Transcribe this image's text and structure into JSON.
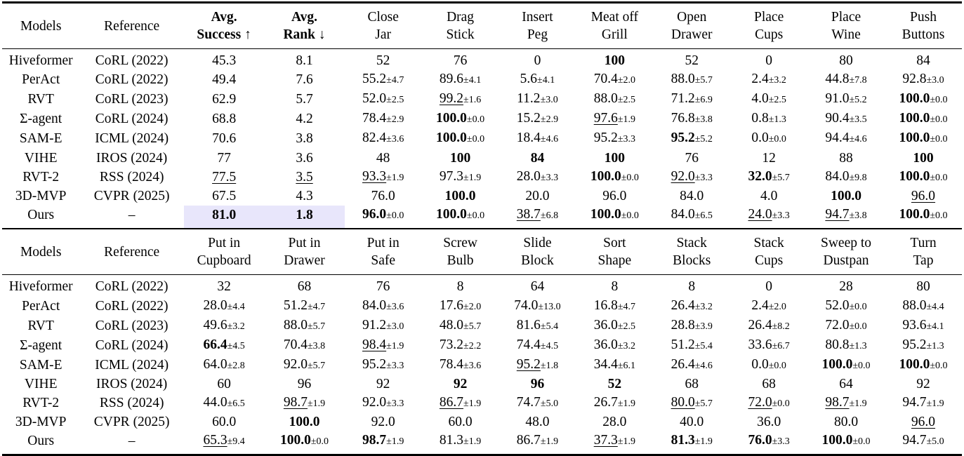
{
  "header_top": {
    "models": "Models",
    "reference": "Reference",
    "avg_success": [
      "Avg.",
      "Success ↑"
    ],
    "avg_rank": [
      "Avg.",
      "Rank ↓"
    ],
    "tasks": [
      [
        "Close",
        "Jar"
      ],
      [
        "Drag",
        "Stick"
      ],
      [
        "Insert",
        "Peg"
      ],
      [
        "Meat off",
        "Grill"
      ],
      [
        "Open",
        "Drawer"
      ],
      [
        "Place",
        "Cups"
      ],
      [
        "Place",
        "Wine"
      ],
      [
        "Push",
        "Buttons"
      ]
    ]
  },
  "rows_top": [
    {
      "model": "Hiveformer",
      "ref": "CoRL (2022)",
      "cells": [
        {
          "v": "45.3"
        },
        {
          "v": "8.1"
        },
        {
          "v": "52"
        },
        {
          "v": "76"
        },
        {
          "v": "0"
        },
        {
          "v": "100",
          "b": true
        },
        {
          "v": "52"
        },
        {
          "v": "0"
        },
        {
          "v": "80"
        },
        {
          "v": "84"
        }
      ]
    },
    {
      "model": "PerAct",
      "ref": "CoRL (2022)",
      "cells": [
        {
          "v": "49.4"
        },
        {
          "v": "7.6"
        },
        {
          "v": "55.2",
          "s": "±4.7"
        },
        {
          "v": "89.6",
          "s": "±4.1"
        },
        {
          "v": "5.6",
          "s": "±4.1"
        },
        {
          "v": "70.4",
          "s": "±2.0"
        },
        {
          "v": "88.0",
          "s": "±5.7"
        },
        {
          "v": "2.4",
          "s": "±3.2"
        },
        {
          "v": "44.8",
          "s": "±7.8"
        },
        {
          "v": "92.8",
          "s": "±3.0"
        }
      ]
    },
    {
      "model": "RVT",
      "ref": "CoRL (2023)",
      "cells": [
        {
          "v": "62.9"
        },
        {
          "v": "5.7"
        },
        {
          "v": "52.0",
          "s": "±2.5"
        },
        {
          "v": "99.2",
          "s": "±1.6",
          "u": true
        },
        {
          "v": "11.2",
          "s": "±3.0"
        },
        {
          "v": "88.0",
          "s": "±2.5"
        },
        {
          "v": "71.2",
          "s": "±6.9"
        },
        {
          "v": "4.0",
          "s": "±2.5"
        },
        {
          "v": "91.0",
          "s": "±5.2"
        },
        {
          "v": "100.0",
          "s": "±0.0",
          "b": true
        }
      ]
    },
    {
      "model": "Σ-agent",
      "ref": "CoRL (2024)",
      "cells": [
        {
          "v": "68.8"
        },
        {
          "v": "4.2"
        },
        {
          "v": "78.4",
          "s": "±2.9"
        },
        {
          "v": "100.0",
          "s": "±0.0",
          "b": true
        },
        {
          "v": "15.2",
          "s": "±2.9"
        },
        {
          "v": "97.6",
          "s": "±1.9",
          "u": true
        },
        {
          "v": "76.8",
          "s": "±3.8"
        },
        {
          "v": "0.8",
          "s": "±1.3"
        },
        {
          "v": "90.4",
          "s": "±3.5"
        },
        {
          "v": "100.0",
          "s": "±0.0",
          "b": true
        }
      ]
    },
    {
      "model": "SAM-E",
      "ref": "ICML (2024)",
      "cells": [
        {
          "v": "70.6"
        },
        {
          "v": "3.8"
        },
        {
          "v": "82.4",
          "s": "±3.6"
        },
        {
          "v": "100.0",
          "s": "±0.0",
          "b": true
        },
        {
          "v": "18.4",
          "s": "±4.6"
        },
        {
          "v": "95.2",
          "s": "±3.3"
        },
        {
          "v": "95.2",
          "s": "±5.2",
          "b": true
        },
        {
          "v": "0.0",
          "s": "±0.0"
        },
        {
          "v": "94.4",
          "s": "±4.6"
        },
        {
          "v": "100.0",
          "s": "±0.0",
          "b": true
        }
      ]
    },
    {
      "model": "VIHE",
      "ref": "IROS (2024)",
      "cells": [
        {
          "v": "77"
        },
        {
          "v": "3.6"
        },
        {
          "v": "48"
        },
        {
          "v": "100",
          "b": true
        },
        {
          "v": "84",
          "b": true
        },
        {
          "v": "100",
          "b": true
        },
        {
          "v": "76"
        },
        {
          "v": "12"
        },
        {
          "v": "88"
        },
        {
          "v": "100",
          "b": true
        }
      ]
    },
    {
      "model": "RVT-2",
      "ref": "RSS (2024)",
      "cells": [
        {
          "v": "77.5",
          "u": true
        },
        {
          "v": "3.5",
          "u": true
        },
        {
          "v": "93.3",
          "s": "±1.9",
          "u": true
        },
        {
          "v": "97.3",
          "s": "±1.9"
        },
        {
          "v": "28.0",
          "s": "±3.3"
        },
        {
          "v": "100.0",
          "s": "±0.0",
          "b": true
        },
        {
          "v": "92.0",
          "s": "±3.3",
          "u": true
        },
        {
          "v": "32.0",
          "s": "±5.7",
          "b": true
        },
        {
          "v": "84.0",
          "s": "±9.8"
        },
        {
          "v": "100.0",
          "s": "±0.0",
          "b": true
        }
      ]
    },
    {
      "model": "3D-MVP",
      "ref": "CVPR (2025)",
      "cells": [
        {
          "v": "67.5"
        },
        {
          "v": "4.3"
        },
        {
          "v": "76.0"
        },
        {
          "v": "100.0",
          "b": true
        },
        {
          "v": "20.0"
        },
        {
          "v": "96.0"
        },
        {
          "v": "84.0"
        },
        {
          "v": "4.0"
        },
        {
          "v": "100.0",
          "b": true
        },
        {
          "v": "96.0",
          "u": true
        }
      ]
    },
    {
      "model": "Ours",
      "ref": "–",
      "cells": [
        {
          "v": "81.0",
          "b": true,
          "h": true
        },
        {
          "v": "1.8",
          "b": true,
          "h": true
        },
        {
          "v": "96.0",
          "s": "±0.0",
          "b": true
        },
        {
          "v": "100.0",
          "s": "±0.0",
          "b": true
        },
        {
          "v": "38.7",
          "s": "±6.8",
          "u": true
        },
        {
          "v": "100.0",
          "s": "±0.0",
          "b": true
        },
        {
          "v": "84.0",
          "s": "±6.5"
        },
        {
          "v": "24.0",
          "s": "±3.3",
          "u": true
        },
        {
          "v": "94.7",
          "s": "±3.8",
          "u": true
        },
        {
          "v": "100.0",
          "s": "±0.0",
          "b": true
        }
      ]
    }
  ],
  "header_bottom": {
    "models": "Models",
    "reference": "Reference",
    "tasks": [
      [
        "Put in",
        "Cupboard"
      ],
      [
        "Put in",
        "Drawer"
      ],
      [
        "Put in",
        "Safe"
      ],
      [
        "Screw",
        "Bulb"
      ],
      [
        "Slide",
        "Block"
      ],
      [
        "Sort",
        "Shape"
      ],
      [
        "Stack",
        "Blocks"
      ],
      [
        "Stack",
        "Cups"
      ],
      [
        "Sweep to",
        "Dustpan"
      ],
      [
        "Turn",
        "Tap"
      ]
    ]
  },
  "rows_bottom": [
    {
      "model": "Hiveformer",
      "ref": "CoRL (2022)",
      "cells": [
        {
          "v": "32"
        },
        {
          "v": "68"
        },
        {
          "v": "76"
        },
        {
          "v": "8"
        },
        {
          "v": "64"
        },
        {
          "v": "8"
        },
        {
          "v": "8"
        },
        {
          "v": "0"
        },
        {
          "v": "28"
        },
        {
          "v": "80"
        }
      ]
    },
    {
      "model": "PerAct",
      "ref": "CoRL (2022)",
      "cells": [
        {
          "v": "28.0",
          "s": "±4.4"
        },
        {
          "v": "51.2",
          "s": "±4.7"
        },
        {
          "v": "84.0",
          "s": "±3.6"
        },
        {
          "v": "17.6",
          "s": "±2.0"
        },
        {
          "v": "74.0",
          "s": "±13.0"
        },
        {
          "v": "16.8",
          "s": "±4.7"
        },
        {
          "v": "26.4",
          "s": "±3.2"
        },
        {
          "v": "2.4",
          "s": "±2.0"
        },
        {
          "v": "52.0",
          "s": "±0.0"
        },
        {
          "v": "88.0",
          "s": "±4.4"
        }
      ]
    },
    {
      "model": "RVT",
      "ref": "CoRL (2023)",
      "cells": [
        {
          "v": "49.6",
          "s": "±3.2"
        },
        {
          "v": "88.0",
          "s": "±5.7"
        },
        {
          "v": "91.2",
          "s": "±3.0"
        },
        {
          "v": "48.0",
          "s": "±5.7"
        },
        {
          "v": "81.6",
          "s": "±5.4"
        },
        {
          "v": "36.0",
          "s": "±2.5"
        },
        {
          "v": "28.8",
          "s": "±3.9"
        },
        {
          "v": "26.4",
          "s": "±8.2"
        },
        {
          "v": "72.0",
          "s": "±0.0"
        },
        {
          "v": "93.6",
          "s": "±4.1"
        }
      ]
    },
    {
      "model": "Σ-agent",
      "ref": "CoRL (2024)",
      "cells": [
        {
          "v": "66.4",
          "s": "±4.5",
          "b": true
        },
        {
          "v": "70.4",
          "s": "±3.8"
        },
        {
          "v": "98.4",
          "s": "±1.9",
          "u": true
        },
        {
          "v": "73.2",
          "s": "±2.2"
        },
        {
          "v": "74.4",
          "s": "±4.5"
        },
        {
          "v": "36.0",
          "s": "±3.2"
        },
        {
          "v": "51.2",
          "s": "±5.4"
        },
        {
          "v": "33.6",
          "s": "±6.7"
        },
        {
          "v": "80.8",
          "s": "±1.3"
        },
        {
          "v": "95.2",
          "s": "±1.3"
        }
      ]
    },
    {
      "model": "SAM-E",
      "ref": "ICML (2024)",
      "cells": [
        {
          "v": "64.0",
          "s": "±2.8"
        },
        {
          "v": "92.0",
          "s": "±5.7"
        },
        {
          "v": "95.2",
          "s": "±3.3"
        },
        {
          "v": "78.4",
          "s": "±3.6"
        },
        {
          "v": "95.2",
          "s": "±1.8",
          "u": true
        },
        {
          "v": "34.4",
          "s": "±6.1"
        },
        {
          "v": "26.4",
          "s": "±4.6"
        },
        {
          "v": "0.0",
          "s": "±0.0"
        },
        {
          "v": "100.0",
          "s": "±0.0",
          "b": true
        },
        {
          "v": "100.0",
          "s": "±0.0",
          "b": true
        }
      ]
    },
    {
      "model": "VIHE",
      "ref": "IROS (2024)",
      "cells": [
        {
          "v": "60"
        },
        {
          "v": "96"
        },
        {
          "v": "92"
        },
        {
          "v": "92",
          "b": true
        },
        {
          "v": "96",
          "b": true
        },
        {
          "v": "52",
          "b": true
        },
        {
          "v": "68"
        },
        {
          "v": "68"
        },
        {
          "v": "64"
        },
        {
          "v": "92"
        }
      ]
    },
    {
      "model": "RVT-2",
      "ref": "RSS (2024)",
      "cells": [
        {
          "v": "44.0",
          "s": "±6.5"
        },
        {
          "v": "98.7",
          "s": "±1.9",
          "u": true
        },
        {
          "v": "92.0",
          "s": "±3.3"
        },
        {
          "v": "86.7",
          "s": "±1.9",
          "u": true
        },
        {
          "v": "74.7",
          "s": "±5.0"
        },
        {
          "v": "26.7",
          "s": "±1.9"
        },
        {
          "v": "80.0",
          "s": "±5.7",
          "u": true
        },
        {
          "v": "72.0",
          "s": "±0.0",
          "u": true
        },
        {
          "v": "98.7",
          "s": "±1.9",
          "u": true
        },
        {
          "v": "94.7",
          "s": "±1.9"
        }
      ]
    },
    {
      "model": "3D-MVP",
      "ref": "CVPR (2025)",
      "cells": [
        {
          "v": "60.0"
        },
        {
          "v": "100.0",
          "b": true
        },
        {
          "v": "92.0"
        },
        {
          "v": "60.0"
        },
        {
          "v": "48.0"
        },
        {
          "v": "28.0"
        },
        {
          "v": "40.0"
        },
        {
          "v": "36.0"
        },
        {
          "v": "80.0"
        },
        {
          "v": "96.0",
          "u": true
        }
      ]
    },
    {
      "model": "Ours",
      "ref": "–",
      "cells": [
        {
          "v": "65.3",
          "s": "±9.4",
          "u": true
        },
        {
          "v": "100.0",
          "s": "±0.0",
          "b": true
        },
        {
          "v": "98.7",
          "s": "±1.9",
          "b": true
        },
        {
          "v": "81.3",
          "s": "±1.9"
        },
        {
          "v": "86.7",
          "s": "±1.9"
        },
        {
          "v": "37.3",
          "s": "±1.9",
          "u": true
        },
        {
          "v": "81.3",
          "s": "±1.9",
          "b": true
        },
        {
          "v": "76.0",
          "s": "±3.3",
          "b": true
        },
        {
          "v": "100.0",
          "s": "±0.0",
          "b": true
        },
        {
          "v": "94.7",
          "s": "±5.0"
        }
      ]
    }
  ],
  "colors": {
    "highlight": "#e8e6fb",
    "rule": "#000000",
    "text": "#000000"
  }
}
